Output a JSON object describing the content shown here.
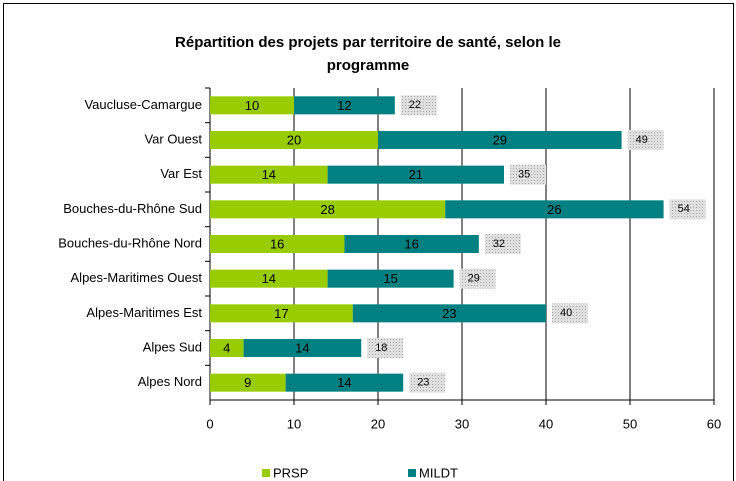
{
  "chart_data": {
    "type": "stacked-bar-horizontal",
    "title": "Répartition des projets par territoire de santé, selon le programme",
    "categories": [
      "Vaucluse-Camargue",
      "Var Ouest",
      "Var Est",
      "Bouches-du-Rhône Sud",
      "Bouches-du-Rhône Nord",
      "Alpes-Maritimes Ouest",
      "Alpes-Maritimes Est",
      "Alpes Sud",
      "Alpes Nord"
    ],
    "series": [
      {
        "name": "PRSP",
        "color": "#99cc00",
        "values": [
          10,
          20,
          14,
          28,
          16,
          14,
          17,
          4,
          9
        ]
      },
      {
        "name": "MILDT",
        "color": "#008080",
        "values": [
          12,
          29,
          21,
          26,
          16,
          15,
          23,
          14,
          14
        ]
      }
    ],
    "totals": [
      22,
      49,
      35,
      54,
      32,
      29,
      40,
      18,
      23
    ],
    "xlim": [
      0,
      60
    ],
    "xticks": [
      0,
      10,
      20,
      30,
      40,
      50,
      60
    ],
    "grid": true,
    "legend": "bottom"
  }
}
